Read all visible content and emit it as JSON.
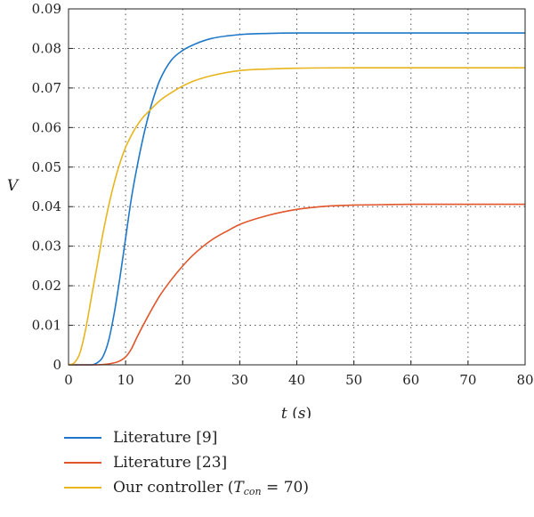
{
  "chart_data": {
    "type": "line",
    "xlabel": "t",
    "xunit": "s",
    "ylabel": "V",
    "xlim": [
      0,
      80
    ],
    "ylim": [
      0,
      0.09
    ],
    "xticks": [
      "0",
      "10",
      "20",
      "30",
      "40",
      "50",
      "60",
      "70",
      "80"
    ],
    "yticks": [
      "0",
      "0.01",
      "0.02",
      "0.03",
      "0.04",
      "0.05",
      "0.06",
      "0.07",
      "0.08",
      "0.09"
    ],
    "grid": true,
    "legend_position": "bottom",
    "series": [
      {
        "name": "Literature [9]",
        "color": "#1f77c8",
        "x": [
          0,
          4,
          5,
          6,
          7,
          8,
          9,
          10,
          11,
          12,
          13,
          14,
          15,
          16,
          18,
          20,
          22,
          25,
          30,
          35,
          40,
          50,
          60,
          70,
          80
        ],
        "y": [
          0,
          0,
          0.0005,
          0.002,
          0.006,
          0.013,
          0.022,
          0.032,
          0.042,
          0.05,
          0.057,
          0.063,
          0.068,
          0.072,
          0.077,
          0.0795,
          0.081,
          0.0825,
          0.0835,
          0.0838,
          0.0839,
          0.0839,
          0.0839,
          0.0839,
          0.0839
        ]
      },
      {
        "name": "Literature [23]",
        "color": "#e0552a",
        "x": [
          0,
          5,
          8,
          9,
          10,
          11,
          12,
          14,
          16,
          18,
          20,
          22,
          25,
          28,
          30,
          35,
          40,
          45,
          50,
          55,
          60,
          70,
          80
        ],
        "y": [
          0,
          0,
          0.0005,
          0.001,
          0.002,
          0.004,
          0.007,
          0.0125,
          0.0175,
          0.0215,
          0.025,
          0.028,
          0.0315,
          0.034,
          0.0355,
          0.0378,
          0.0393,
          0.0401,
          0.0404,
          0.0405,
          0.0406,
          0.0406,
          0.0406
        ]
      },
      {
        "name": "Our controller",
        "name_param": "T",
        "name_sub": "con",
        "name_value": "= 70",
        "color": "#e8b51e",
        "x": [
          0,
          1,
          2,
          3,
          4,
          5,
          6,
          7,
          8,
          9,
          10,
          11,
          12,
          13,
          14,
          16,
          18,
          20,
          22,
          25,
          30,
          35,
          40,
          50,
          60,
          70,
          80
        ],
        "y": [
          0,
          0.0005,
          0.003,
          0.009,
          0.017,
          0.025,
          0.033,
          0.04,
          0.046,
          0.051,
          0.055,
          0.058,
          0.0605,
          0.0625,
          0.064,
          0.0668,
          0.0688,
          0.0705,
          0.0718,
          0.0731,
          0.0744,
          0.0748,
          0.075,
          0.0751,
          0.0751,
          0.0751,
          0.0751
        ]
      }
    ]
  }
}
